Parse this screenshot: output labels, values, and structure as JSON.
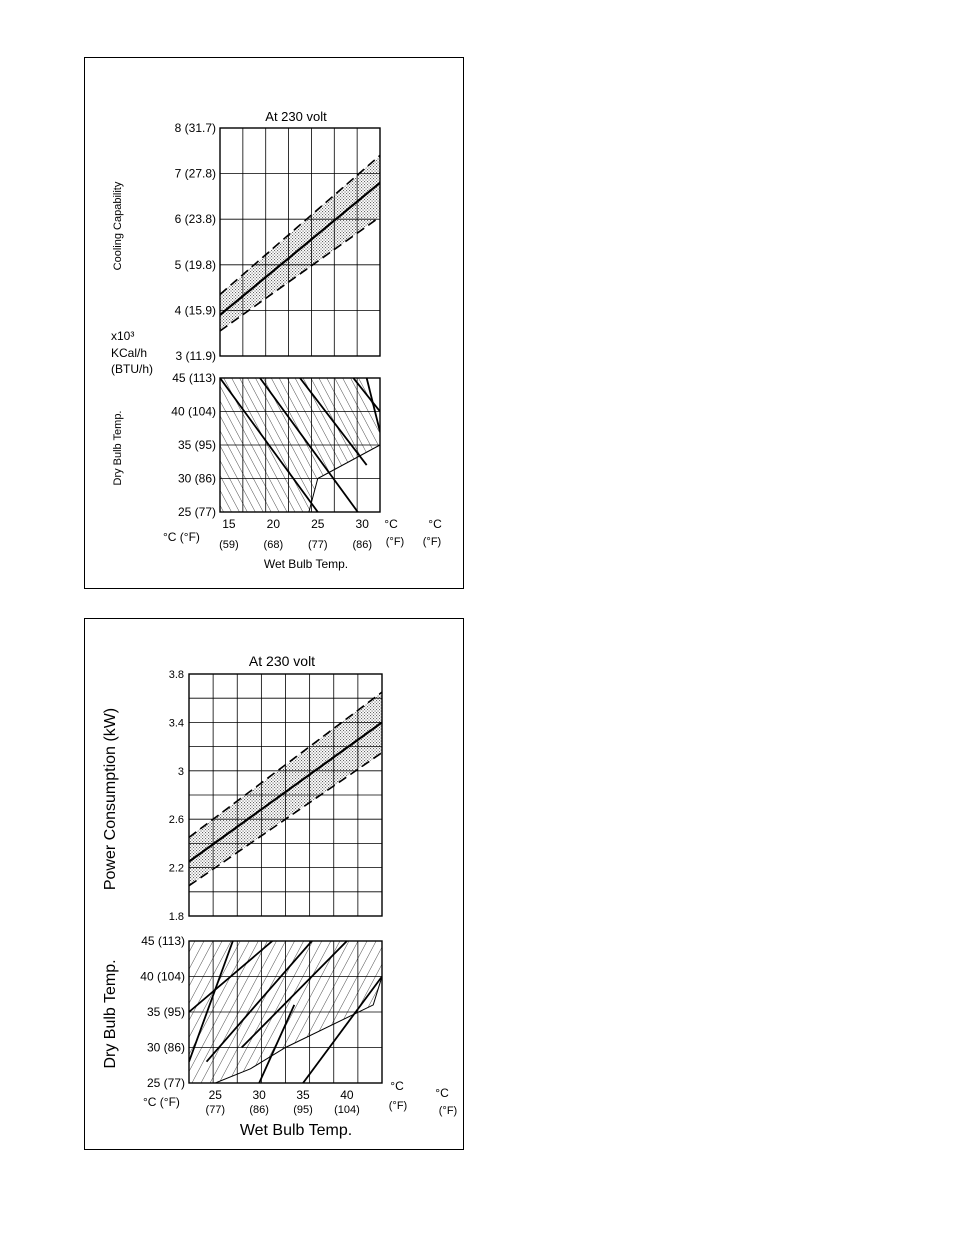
{
  "chart_data": [
    {
      "type": "line",
      "title": "At 230 volt",
      "ylabel": "Cooling Capability",
      "y_unit": [
        "x10³",
        "KCal/h",
        "(BTU/h)"
      ],
      "xlabel": "Wet Bulb Temp.",
      "ylim": [
        3,
        8
      ],
      "y_ticks": [
        3,
        4,
        5,
        6,
        7,
        8
      ],
      "y_tick_labels": [
        "3 (11.9)",
        "4 (15.9)",
        "5 (19.8)",
        "6 (23.8)",
        "7 (27.8)",
        "8 (31.7)"
      ],
      "xlim": [
        14,
        32
      ],
      "x_ticks": [
        15,
        20,
        25,
        30
      ],
      "x_tick_labels": [
        "15",
        "20",
        "25",
        "30"
      ],
      "x_tick_labels_f": [
        "(59)",
        "(68)",
        "(77)",
        "(86)"
      ],
      "x_unit_label": "°C (°F)",
      "series": [
        {
          "role": "nominal",
          "x": [
            14,
            32
          ],
          "y": [
            3.9,
            6.8
          ]
        },
        {
          "role": "upper",
          "x": [
            14,
            32
          ],
          "y": [
            4.35,
            7.4
          ]
        },
        {
          "role": "lower",
          "x": [
            14,
            32
          ],
          "y": [
            3.55,
            6.05
          ]
        }
      ],
      "grid": true
    },
    {
      "type": "area",
      "title": "",
      "ylabel": "Dry Bulb Temp.",
      "xlabel": "Wet Bulb Temp.",
      "ylim": [
        25,
        45
      ],
      "y_ticks": [
        25,
        30,
        35,
        40,
        45
      ],
      "y_tick_labels": [
        "25 (77)",
        "30 (86)",
        "35 (95)",
        "40 (104)",
        "45 (113)"
      ],
      "xlim": [
        14,
        32
      ],
      "x_ticks": [
        15,
        20,
        25,
        30
      ],
      "x_tick_labels": [
        "15",
        "20",
        "25",
        "30"
      ],
      "x_tick_labels_f": [
        "(59)",
        "(68)",
        "(77)",
        "(86)"
      ],
      "unit_labels": [
        "°C",
        "(°F)",
        "°C",
        "(°F)"
      ],
      "x_unit_label": "°C (°F)",
      "region": {
        "x": [
          14,
          24,
          25,
          32,
          32,
          30.5,
          14
        ],
        "y": [
          25,
          25,
          30,
          35,
          37,
          45,
          45
        ]
      },
      "lines": [
        {
          "x": [
            14,
            25
          ],
          "y": [
            45,
            25
          ]
        },
        {
          "x": [
            18.5,
            29.5
          ],
          "y": [
            45,
            25
          ]
        },
        {
          "x": [
            23,
            30.5
          ],
          "y": [
            45,
            32
          ]
        },
        {
          "x": [
            30.5,
            32
          ],
          "y": [
            45,
            37
          ]
        },
        {
          "x": [
            29,
            32
          ],
          "y": [
            45,
            40
          ]
        }
      ],
      "grid": true
    },
    {
      "type": "line",
      "title": "At 230 volt",
      "ylabel": "Power Consumption (kW)",
      "xlabel": "Wet Bulb Temp.",
      "ylim": [
        1.8,
        3.8
      ],
      "y_ticks": [
        1.8,
        2.2,
        2.6,
        3,
        3.4,
        3.8
      ],
      "y_tick_labels": [
        "1.8",
        "2.2",
        "2.6",
        "3",
        "3.4",
        "3.8"
      ],
      "xlim": [
        22,
        44
      ],
      "x_ticks": [
        25,
        30,
        35,
        40
      ],
      "x_tick_labels": [
        "25",
        "30",
        "35",
        "40"
      ],
      "x_tick_labels_f": [
        "(77)",
        "(86)",
        "(95)",
        "(104)"
      ],
      "x_unit_label": "°C (°F)",
      "series": [
        {
          "role": "nominal",
          "x": [
            22,
            44
          ],
          "y": [
            2.25,
            3.4
          ]
        },
        {
          "role": "upper",
          "x": [
            22,
            44
          ],
          "y": [
            2.45,
            3.65
          ]
        },
        {
          "role": "lower",
          "x": [
            22,
            44
          ],
          "y": [
            2.05,
            3.15
          ]
        }
      ],
      "grid": true
    },
    {
      "type": "area",
      "title": "",
      "ylabel": "Dry Bulb Temp.",
      "xlabel": "Wet Bulb Temp.",
      "ylim": [
        25,
        45
      ],
      "y_ticks": [
        25,
        30,
        35,
        40,
        45
      ],
      "y_tick_labels": [
        "25 (77)",
        "30 (86)",
        "35 (95)",
        "40 (104)",
        "45 (113)"
      ],
      "xlim": [
        22,
        44
      ],
      "x_ticks": [
        25,
        30,
        35,
        40
      ],
      "x_tick_labels": [
        "25",
        "30",
        "35",
        "40"
      ],
      "x_tick_labels_f": [
        "(77)",
        "(86)",
        "(95)",
        "(104)"
      ],
      "unit_labels": [
        "°C",
        "(°F)",
        "°C",
        "(°F)"
      ],
      "x_unit_label": "°C (°F)",
      "region": {
        "x": [
          22,
          25,
          29,
          33,
          43,
          44,
          44,
          22
        ],
        "y": [
          25,
          25,
          27,
          30,
          36,
          40,
          45,
          45
        ]
      },
      "lines": [
        {
          "x": [
            22,
            31.5
          ],
          "y": [
            35,
            45
          ]
        },
        {
          "x": [
            22,
            27
          ],
          "y": [
            28,
            45
          ]
        },
        {
          "x": [
            24,
            36
          ],
          "y": [
            28,
            45
          ]
        },
        {
          "x": [
            28,
            40
          ],
          "y": [
            30,
            45
          ]
        },
        {
          "x": [
            30,
            34
          ],
          "y": [
            25,
            36
          ]
        },
        {
          "x": [
            35,
            44
          ],
          "y": [
            25,
            40
          ]
        }
      ],
      "grid": true
    }
  ]
}
